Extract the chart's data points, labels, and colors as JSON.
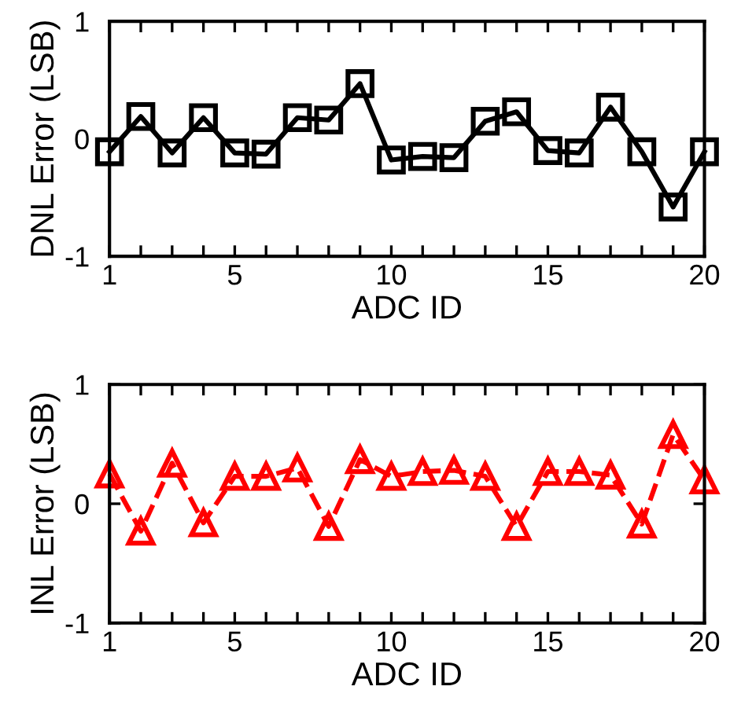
{
  "chart_data": [
    {
      "type": "line",
      "xlabel": "ADC ID",
      "ylabel": "DNL Error (LSB)",
      "x": [
        1,
        2,
        3,
        4,
        5,
        6,
        7,
        8,
        9,
        10,
        11,
        12,
        13,
        14,
        15,
        16,
        17,
        18,
        19,
        20
      ],
      "series": [
        {
          "color": "#000000",
          "values": [
            -0.11,
            0.19,
            -0.12,
            0.18,
            -0.12,
            -0.13,
            0.18,
            0.16,
            0.47,
            -0.18,
            -0.15,
            -0.16,
            0.15,
            0.23,
            -0.1,
            -0.12,
            0.27,
            -0.11,
            -0.58,
            -0.11
          ]
        }
      ],
      "marker": "square",
      "line_style": "solid",
      "grid": false,
      "legend": false,
      "xlim": [
        1,
        20
      ],
      "xticks": [
        1,
        {
          "value": 2,
          "label": null
        },
        {
          "value": 3,
          "label": null
        },
        {
          "value": 4,
          "label": null
        },
        5,
        {
          "value": 6,
          "label": null
        },
        {
          "value": 7,
          "label": null
        },
        {
          "value": 8,
          "label": null
        },
        {
          "value": 9,
          "label": null
        },
        10,
        {
          "value": 11,
          "label": null
        },
        {
          "value": 12,
          "label": null
        },
        {
          "value": 13,
          "label": null
        },
        {
          "value": 14,
          "label": null
        },
        15,
        {
          "value": 16,
          "label": null
        },
        {
          "value": 17,
          "label": null
        },
        {
          "value": 18,
          "label": null
        },
        {
          "value": 19,
          "label": null
        },
        20
      ],
      "ylim": [
        -1,
        1
      ],
      "yticks": [
        -1,
        0,
        1
      ]
    },
    {
      "type": "line",
      "xlabel": "ADC ID",
      "ylabel": "INL Error (LSB)",
      "x": [
        1,
        2,
        3,
        4,
        5,
        6,
        7,
        8,
        9,
        10,
        11,
        12,
        13,
        14,
        15,
        16,
        17,
        18,
        19,
        20
      ],
      "series": [
        {
          "color": "#ff0000",
          "values": [
            0.25,
            -0.23,
            0.34,
            -0.16,
            0.23,
            0.23,
            0.3,
            -0.19,
            0.37,
            0.23,
            0.27,
            0.28,
            0.23,
            -0.19,
            0.27,
            0.27,
            0.24,
            -0.17,
            0.58,
            0.2
          ]
        }
      ],
      "marker": "triangle",
      "line_style": "dashed",
      "grid": false,
      "legend": false,
      "xlim": [
        1,
        20
      ],
      "xticks": [
        1,
        {
          "value": 2,
          "label": null
        },
        {
          "value": 3,
          "label": null
        },
        {
          "value": 4,
          "label": null
        },
        5,
        {
          "value": 6,
          "label": null
        },
        {
          "value": 7,
          "label": null
        },
        {
          "value": 8,
          "label": null
        },
        {
          "value": 9,
          "label": null
        },
        10,
        {
          "value": 11,
          "label": null
        },
        {
          "value": 12,
          "label": null
        },
        {
          "value": 13,
          "label": null
        },
        {
          "value": 14,
          "label": null
        },
        15,
        {
          "value": 16,
          "label": null
        },
        {
          "value": 17,
          "label": null
        },
        {
          "value": 18,
          "label": null
        },
        {
          "value": 19,
          "label": null
        },
        20
      ],
      "ylim": [
        -1,
        1
      ],
      "yticks": [
        -1,
        0,
        1
      ]
    }
  ]
}
